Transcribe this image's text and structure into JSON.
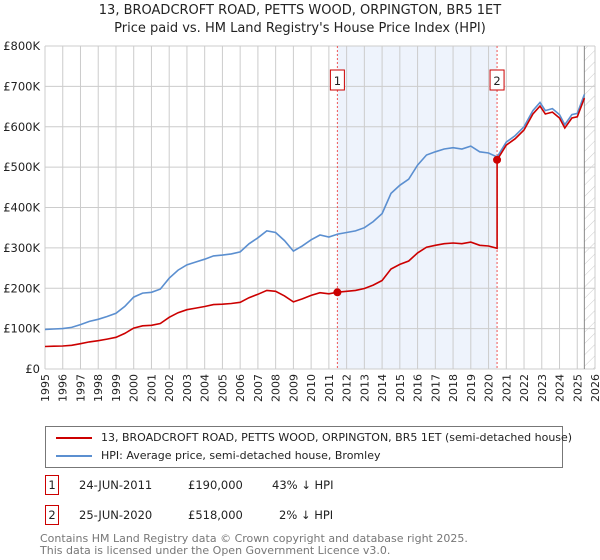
{
  "chart_data": {
    "type": "line",
    "title": "13, BROADCROFT ROAD, PETTS WOOD, ORPINGTON, BR5 1ET",
    "subtitle": "Price paid vs. HM Land Registry's House Price Index (HPI)",
    "xlim": [
      1995,
      2026
    ],
    "ylim": [
      0,
      800000
    ],
    "y_ticks": [
      {
        "v": 0,
        "label": "£0"
      },
      {
        "v": 100000,
        "label": "£100K"
      },
      {
        "v": 200000,
        "label": "£200K"
      },
      {
        "v": 300000,
        "label": "£300K"
      },
      {
        "v": 400000,
        "label": "£400K"
      },
      {
        "v": 500000,
        "label": "£500K"
      },
      {
        "v": 600000,
        "label": "£600K"
      },
      {
        "v": 700000,
        "label": "£700K"
      },
      {
        "v": 800000,
        "label": "£800K"
      }
    ],
    "x_ticks": [
      "1995",
      "1996",
      "1997",
      "1998",
      "1999",
      "2000",
      "2001",
      "2002",
      "2003",
      "2004",
      "2005",
      "2006",
      "2007",
      "2008",
      "2009",
      "2010",
      "2011",
      "2012",
      "2013",
      "2014",
      "2015",
      "2016",
      "2017",
      "2018",
      "2019",
      "2020",
      "2021",
      "2022",
      "2023",
      "2024",
      "2025",
      "2026"
    ],
    "grid": true,
    "colors": {
      "property": "#cc0000",
      "hpi": "#5b8fd0",
      "shade": "#eef3fc"
    },
    "forecast_from": 2025.4,
    "hpi_series": [
      [
        1995,
        98
      ],
      [
        1995.5,
        99
      ],
      [
        1996,
        100
      ],
      [
        1996.5,
        103
      ],
      [
        1997,
        110
      ],
      [
        1997.5,
        118
      ],
      [
        1998,
        123
      ],
      [
        1998.5,
        130
      ],
      [
        1999,
        138
      ],
      [
        1999.5,
        155
      ],
      [
        2000,
        178
      ],
      [
        2000.5,
        188
      ],
      [
        2001,
        190
      ],
      [
        2001.5,
        198
      ],
      [
        2002,
        225
      ],
      [
        2002.5,
        245
      ],
      [
        2003,
        258
      ],
      [
        2003.5,
        265
      ],
      [
        2004,
        272
      ],
      [
        2004.5,
        280
      ],
      [
        2005,
        282
      ],
      [
        2005.5,
        285
      ],
      [
        2006,
        290
      ],
      [
        2006.5,
        310
      ],
      [
        2007,
        325
      ],
      [
        2007.5,
        342
      ],
      [
        2008,
        338
      ],
      [
        2008.5,
        318
      ],
      [
        2009,
        292
      ],
      [
        2009.5,
        305
      ],
      [
        2010,
        320
      ],
      [
        2010.5,
        332
      ],
      [
        2011,
        327
      ],
      [
        2011.5,
        334
      ],
      [
        2012,
        338
      ],
      [
        2012.5,
        342
      ],
      [
        2013,
        350
      ],
      [
        2013.5,
        365
      ],
      [
        2014,
        385
      ],
      [
        2014.5,
        435
      ],
      [
        2015,
        455
      ],
      [
        2015.5,
        470
      ],
      [
        2016,
        505
      ],
      [
        2016.5,
        530
      ],
      [
        2017,
        538
      ],
      [
        2017.5,
        545
      ],
      [
        2018,
        548
      ],
      [
        2018.5,
        545
      ],
      [
        2019,
        552
      ],
      [
        2019.5,
        538
      ],
      [
        2020,
        535
      ],
      [
        2020.48,
        525
      ],
      [
        2021,
        562
      ],
      [
        2021.5,
        578
      ],
      [
        2022,
        600
      ],
      [
        2022.5,
        640
      ],
      [
        2022.9,
        660
      ],
      [
        2023.2,
        640
      ],
      [
        2023.6,
        645
      ],
      [
        2024,
        630
      ],
      [
        2024.3,
        605
      ],
      [
        2024.7,
        630
      ],
      [
        2025,
        633
      ],
      [
        2025.4,
        680
      ]
    ],
    "sales": [
      {
        "id": "1",
        "year": 2011.48,
        "price": 190000
      },
      {
        "id": "2",
        "year": 2020.48,
        "price": 518000
      }
    ]
  },
  "legend": {
    "property": "13, BROADCROFT ROAD, PETTS WOOD, ORPINGTON, BR5 1ET (semi-detached house)",
    "hpi": "HPI: Average price, semi-detached house, Bromley"
  },
  "transactions": [
    {
      "id": "1",
      "date": "24-JUN-2011",
      "price": "£190,000",
      "hpi": "43% ↓ HPI"
    },
    {
      "id": "2",
      "date": "25-JUN-2020",
      "price": "£518,000",
      "hpi": "2% ↓ HPI"
    }
  ],
  "footer": {
    "line1": "Contains HM Land Registry data © Crown copyright and database right 2025.",
    "line2": "This data is licensed under the Open Government Licence v3.0."
  }
}
